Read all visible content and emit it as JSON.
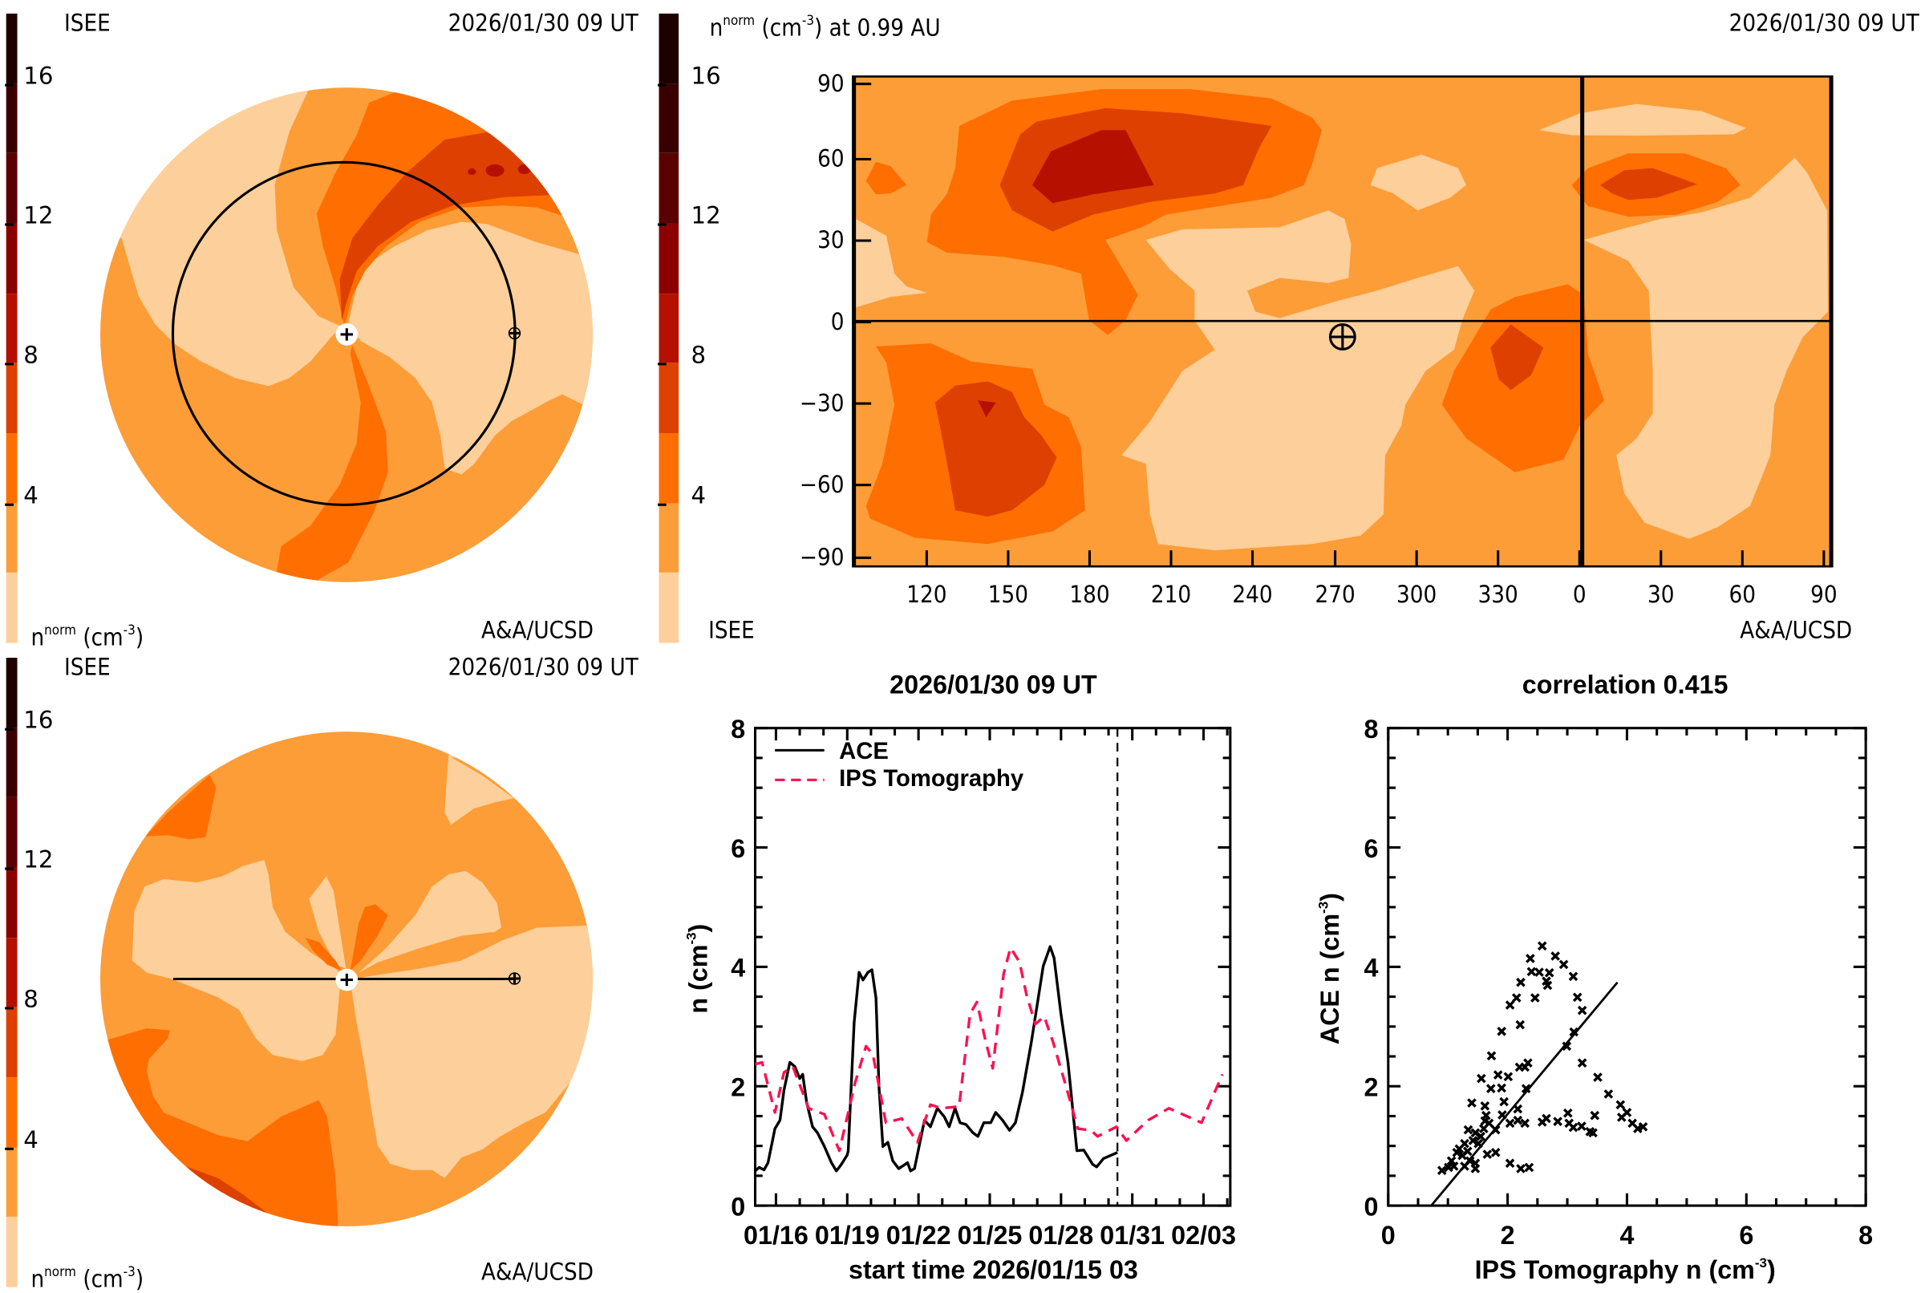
{
  "colorbar": {
    "levels": [
      0,
      2,
      4,
      6,
      8,
      10,
      12,
      14,
      16,
      18
    ],
    "colors": [
      "#fdcf9a",
      "#fc9d38",
      "#ff6e00",
      "#dd4000",
      "#b51000",
      "#8b0000",
      "#5a0000",
      "#3a0000",
      "#1f0000"
    ],
    "tick_values": [
      4,
      8,
      12,
      16
    ],
    "tick_labels": [
      "4",
      "8",
      "12",
      "16"
    ]
  },
  "ecliptic_panel": {
    "source": "ISEE",
    "time": "2026/01/30 09 UT",
    "unit_quantity": "n",
    "unit_sup": "norm",
    "unit_open": "(cm",
    "unit_exp": "-3",
    "unit_close": ")",
    "credit": "A&A/UCSD",
    "sun_icon": "sun-plus-icon",
    "earth_icon": "earth-icon"
  },
  "synoptic_panel": {
    "title_quantity": "n",
    "title_sup": "norm",
    "title_open": "(cm",
    "title_exp": "-3",
    "title_rest": ") at 0.99 AU",
    "time": "2026/01/30 09 UT",
    "source": "ISEE",
    "credit": "A&A/UCSD",
    "lat_ticks": [
      "90",
      "60",
      "30",
      "0",
      "−30",
      "−60",
      "−90"
    ],
    "lon_ticks": [
      "120",
      "150",
      "180",
      "210",
      "240",
      "270",
      "300",
      "330",
      "0",
      "30",
      "60",
      "90"
    ],
    "earth_position": {
      "lon": 272,
      "lat": -5
    }
  },
  "meridional_panel": {
    "source": "ISEE",
    "time": "2026/01/30 09 UT",
    "unit_quantity": "n",
    "unit_sup": "norm",
    "unit_open": "(cm",
    "unit_exp": "-3",
    "unit_close": ")",
    "credit": "A&A/UCSD"
  },
  "chart_data": [
    {
      "type": "line",
      "title": "2026/01/30 09 UT",
      "xlabel": "start time 2026/01/15 03",
      "ylabel_base": "n (cm",
      "ylabel_exp": "-3",
      "ylabel_close": ")",
      "xlim": [
        "01/15 03",
        "02/04 03"
      ],
      "ylim": [
        0,
        8
      ],
      "x_tick_labels": [
        "01/16",
        "01/19",
        "01/22",
        "01/25",
        "01/28",
        "01/31",
        "02/03"
      ],
      "y_tick_labels": [
        "0",
        "2",
        "4",
        "6",
        "8"
      ],
      "current_time_marker": "01/30 09",
      "legend_position": "top-left",
      "series": [
        {
          "name": "ACE",
          "color": "#000000",
          "style": "solid",
          "points": [
            [
              "01/15 03",
              0.58
            ],
            [
              "01/15 07",
              0.64
            ],
            [
              "01/15 12",
              0.6
            ],
            [
              "01/15 16",
              0.72
            ],
            [
              "01/15 23",
              1.29
            ],
            [
              "01/16 04",
              1.43
            ],
            [
              "01/16 08",
              1.93
            ],
            [
              "01/16 14",
              2.4
            ],
            [
              "01/16 19",
              2.33
            ],
            [
              "01/17 00",
              2.13
            ],
            [
              "01/17 03",
              2.2
            ],
            [
              "01/17 07",
              1.73
            ],
            [
              "01/17 13",
              1.32
            ],
            [
              "01/17 18",
              1.22
            ],
            [
              "01/18 01",
              0.99
            ],
            [
              "01/18 08",
              0.72
            ],
            [
              "01/18 13",
              0.58
            ],
            [
              "01/18 18",
              0.69
            ],
            [
              "01/19 00",
              0.85
            ],
            [
              "01/19 01",
              0.92
            ],
            [
              "01/19 07",
              3.07
            ],
            [
              "01/19 12",
              3.91
            ],
            [
              "01/19 16",
              3.78
            ],
            [
              "01/19 21",
              3.91
            ],
            [
              "01/20 01",
              3.95
            ],
            [
              "01/20 05",
              3.48
            ],
            [
              "01/20 08",
              2.0
            ],
            [
              "01/20 12",
              0.99
            ],
            [
              "01/20 17",
              1.06
            ],
            [
              "01/20 22",
              0.75
            ],
            [
              "01/21 04",
              0.62
            ],
            [
              "01/21 13",
              0.72
            ],
            [
              "01/21 16",
              0.58
            ],
            [
              "01/21 20",
              0.62
            ],
            [
              "01/22 06",
              1.43
            ],
            [
              "01/22 12",
              1.32
            ],
            [
              "01/22 19",
              1.63
            ],
            [
              "01/23 02",
              1.49
            ],
            [
              "01/23 07",
              1.32
            ],
            [
              "01/23 13",
              1.63
            ],
            [
              "01/23 18",
              1.39
            ],
            [
              "01/24 00",
              1.36
            ],
            [
              "01/24 07",
              1.22
            ],
            [
              "01/24 12",
              1.16
            ],
            [
              "01/24 18",
              1.39
            ],
            [
              "01/25 01",
              1.39
            ],
            [
              "01/25 06",
              1.56
            ],
            [
              "01/25 13",
              1.43
            ],
            [
              "01/25 20",
              1.26
            ],
            [
              "01/26 02",
              1.39
            ],
            [
              "01/26 09",
              1.9
            ],
            [
              "01/26 18",
              2.74
            ],
            [
              "01/27 01",
              3.48
            ],
            [
              "01/27 06",
              4.01
            ],
            [
              "01/27 13",
              4.34
            ],
            [
              "01/27 17",
              4.15
            ],
            [
              "01/28 00",
              3.21
            ],
            [
              "01/28 07",
              2.4
            ],
            [
              "01/28 16",
              0.92
            ],
            [
              "01/28 23",
              0.93
            ],
            [
              "01/29 08",
              0.69
            ],
            [
              "01/29 12",
              0.65
            ],
            [
              "01/29 19",
              0.79
            ],
            [
              "01/30 09",
              0.89
            ]
          ]
        },
        {
          "name": "IPS Tomography",
          "color": "#ff1050",
          "style": "dashed",
          "points": [
            [
              "01/15 03",
              2.37
            ],
            [
              "01/15 10",
              2.4
            ],
            [
              "01/15 23",
              1.56
            ],
            [
              "01/16 08",
              2.23
            ],
            [
              "01/16 17",
              2.33
            ],
            [
              "01/17 09",
              1.63
            ],
            [
              "01/18 01",
              1.53
            ],
            [
              "01/18 16",
              0.92
            ],
            [
              "01/19 08",
              2.06
            ],
            [
              "01/19 19",
              2.67
            ],
            [
              "01/20 02",
              2.53
            ],
            [
              "01/20 15",
              1.39
            ],
            [
              "01/21 07",
              1.46
            ],
            [
              "01/21 23",
              1.06
            ],
            [
              "01/22 12",
              1.69
            ],
            [
              "01/22 23",
              1.63
            ],
            [
              "01/23 17",
              1.66
            ],
            [
              "01/24 04",
              3.21
            ],
            [
              "01/24 11",
              3.41
            ],
            [
              "01/24 20",
              2.74
            ],
            [
              "01/25 03",
              2.3
            ],
            [
              "01/25 14",
              3.88
            ],
            [
              "01/25 21",
              4.32
            ],
            [
              "01/26 06",
              4.08
            ],
            [
              "01/26 13",
              3.54
            ],
            [
              "01/26 22",
              3.04
            ],
            [
              "01/27 07",
              3.17
            ],
            [
              "01/27 16",
              2.74
            ],
            [
              "01/28 05",
              2.0
            ],
            [
              "01/28 17",
              1.29
            ],
            [
              "01/29 06",
              1.26
            ],
            [
              "01/29 13",
              1.16
            ],
            [
              "01/30 08",
              1.32
            ],
            [
              "01/30 18",
              1.09
            ],
            [
              "01/31 16",
              1.43
            ],
            [
              "02/01 13",
              1.63
            ],
            [
              "02/02 22",
              1.39
            ],
            [
              "02/03 19",
              2.2
            ]
          ]
        }
      ]
    },
    {
      "type": "scatter",
      "title": "correlation 0.415",
      "xlabel_base": "IPS Tomography n (cm",
      "xlabel_exp": "-3",
      "xlabel_close": ")",
      "ylabel_base": "ACE n (cm",
      "ylabel_exp": "-3",
      "ylabel_close": ")",
      "xlim": [
        0,
        8
      ],
      "ylim": [
        0,
        8
      ],
      "x_tick_labels": [
        "0",
        "2",
        "4",
        "6",
        "8"
      ],
      "y_tick_labels": [
        "0",
        "2",
        "4",
        "6",
        "8"
      ],
      "marker": "x",
      "fit_line": [
        [
          0.72,
          0.0
        ],
        [
          3.84,
          3.74
        ]
      ],
      "points": [
        [
          2.58,
          4.35
        ],
        [
          2.38,
          4.14
        ],
        [
          2.8,
          4.18
        ],
        [
          2.94,
          4.04
        ],
        [
          2.4,
          3.92
        ],
        [
          2.53,
          3.91
        ],
        [
          2.7,
          3.9
        ],
        [
          2.65,
          3.76
        ],
        [
          2.67,
          3.69
        ],
        [
          2.22,
          3.74
        ],
        [
          3.1,
          3.84
        ],
        [
          2.46,
          3.48
        ],
        [
          2.15,
          3.48
        ],
        [
          2.04,
          3.36
        ],
        [
          3.17,
          3.49
        ],
        [
          3.25,
          3.27
        ],
        [
          2.21,
          3.03
        ],
        [
          3.11,
          2.91
        ],
        [
          1.9,
          2.92
        ],
        [
          2.99,
          2.67
        ],
        [
          1.73,
          2.51
        ],
        [
          2.29,
          2.32
        ],
        [
          2.2,
          2.32
        ],
        [
          2.34,
          2.39
        ],
        [
          3.25,
          2.39
        ],
        [
          1.84,
          2.19
        ],
        [
          2.01,
          2.16
        ],
        [
          1.56,
          2.13
        ],
        [
          3.51,
          2.15
        ],
        [
          1.72,
          1.96
        ],
        [
          1.9,
          1.97
        ],
        [
          2.31,
          1.96
        ],
        [
          3.69,
          1.87
        ],
        [
          1.4,
          1.72
        ],
        [
          1.94,
          1.74
        ],
        [
          1.62,
          1.67
        ],
        [
          3.89,
          1.69
        ],
        [
          2.17,
          1.62
        ],
        [
          4.0,
          1.56
        ],
        [
          3.01,
          1.55
        ],
        [
          3.46,
          1.51
        ],
        [
          3.91,
          1.48
        ],
        [
          1.91,
          1.52
        ],
        [
          2.17,
          1.43
        ],
        [
          2.65,
          1.46
        ],
        [
          2.58,
          1.4
        ],
        [
          2.84,
          1.41
        ],
        [
          2.04,
          1.38
        ],
        [
          2.29,
          1.38
        ],
        [
          3.03,
          1.38
        ],
        [
          3.1,
          1.31
        ],
        [
          3.24,
          1.33
        ],
        [
          4.09,
          1.38
        ],
        [
          4.18,
          1.29
        ],
        [
          4.27,
          1.32
        ],
        [
          3.38,
          1.24
        ],
        [
          3.43,
          1.22
        ],
        [
          1.34,
          1.27
        ],
        [
          1.46,
          1.22
        ],
        [
          1.8,
          1.27
        ],
        [
          1.64,
          1.51
        ],
        [
          1.62,
          1.42
        ],
        [
          1.6,
          1.29
        ],
        [
          1.69,
          1.38
        ],
        [
          1.55,
          1.16
        ],
        [
          1.51,
          1.04
        ],
        [
          1.42,
          1.09
        ],
        [
          1.28,
          1.04
        ],
        [
          1.19,
          0.95
        ],
        [
          1.24,
          0.84
        ],
        [
          1.15,
          0.89
        ],
        [
          1.06,
          0.75
        ],
        [
          1.1,
          0.66
        ],
        [
          1.01,
          0.64
        ],
        [
          0.9,
          0.59
        ],
        [
          1.28,
          0.66
        ],
        [
          1.37,
          0.75
        ],
        [
          1.46,
          0.71
        ],
        [
          1.46,
          0.62
        ],
        [
          1.33,
          0.91
        ],
        [
          1.66,
          0.86
        ],
        [
          1.8,
          0.89
        ],
        [
          2.04,
          0.71
        ],
        [
          2.22,
          0.62
        ],
        [
          2.36,
          0.64
        ]
      ]
    }
  ]
}
